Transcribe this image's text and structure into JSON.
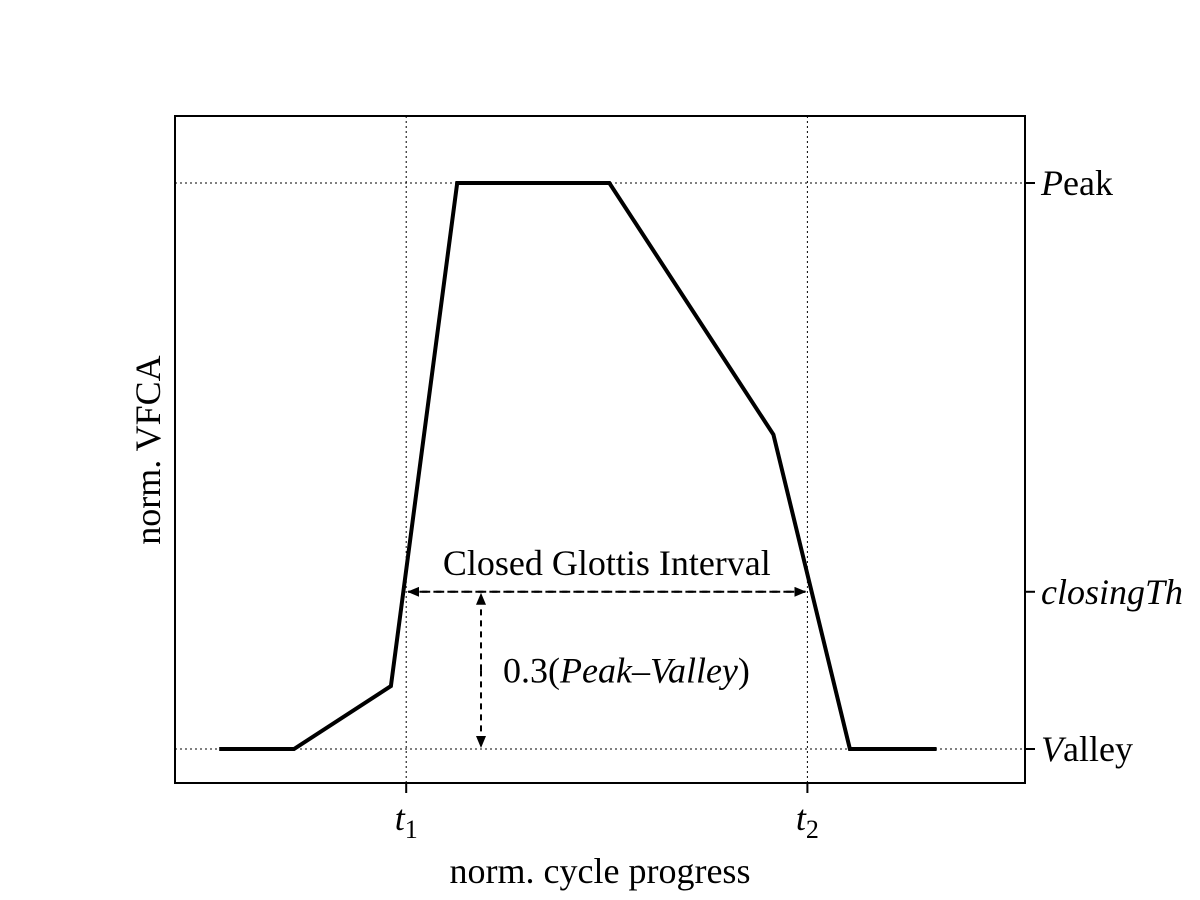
{
  "chart_data": {
    "type": "line",
    "xlabel": "norm. cycle progress",
    "ylabel": "norm. VFCA",
    "xlim": [
      0,
      1
    ],
    "ylim": [
      0,
      1
    ],
    "grid": false,
    "x_ticks": [
      {
        "x": 0.272,
        "main": "t",
        "sub": "1"
      },
      {
        "x": 0.744,
        "main": "t",
        "sub": "2"
      }
    ],
    "y_ticks_right": [
      {
        "y": 0.95,
        "parts": [
          {
            "t": "P",
            "italic": true
          },
          {
            "t": "eak",
            "italic": false
          }
        ]
      },
      {
        "y": 0.3,
        "parts": [
          {
            "t": "closingTh",
            "italic": true
          }
        ]
      },
      {
        "y": 0.05,
        "parts": [
          {
            "t": "V",
            "italic": true
          },
          {
            "t": "alley",
            "italic": false
          }
        ]
      }
    ],
    "series": [
      {
        "x": [
          0.052,
          0.14,
          0.254,
          0.332,
          0.511,
          0.704,
          0.794,
          0.896
        ],
        "y": [
          0.05,
          0.05,
          0.15,
          0.95,
          0.95,
          0.55,
          0.05,
          0.05
        ]
      }
    ],
    "annotations": {
      "interval_label": "Closed Glottis Interval",
      "amplitude_label_parts": [
        {
          "t": "0.3(",
          "italic": false
        },
        {
          "t": "Peak–Valley",
          "italic": true
        },
        {
          "t": ")",
          "italic": false
        }
      ],
      "interval": {
        "x_start": 0.272,
        "x_end": 0.744,
        "y": 0.3
      },
      "amplitude": {
        "x": 0.36,
        "y_from": 0.3,
        "y_to": 0.05
      }
    }
  }
}
